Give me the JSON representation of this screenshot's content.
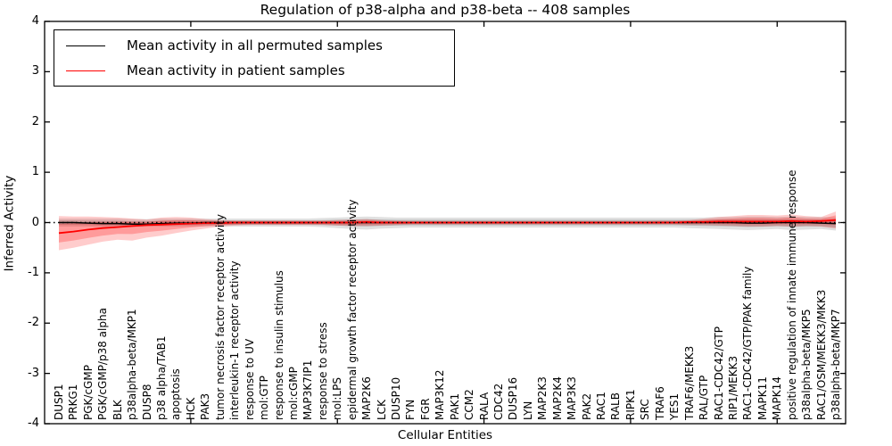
{
  "figure": {
    "title": "Regulation of p38-alpha and p38-beta -- 408 samples",
    "background": "#ffffff",
    "axis_color": "#000000"
  },
  "legend": {
    "position": "upper left",
    "entries": [
      {
        "label": "Mean activity in all permuted samples",
        "color": "#000000"
      },
      {
        "label": "Mean activity in patient samples",
        "color": "#ff0000"
      }
    ]
  },
  "chart_data": {
    "type": "line",
    "title": "Regulation of p38-alpha and p38-beta -- 408 samples",
    "xlabel": "Cellular Entities",
    "ylabel": "Inferred Activity",
    "ylim": [
      -4,
      4
    ],
    "yticks": [
      4,
      3,
      2,
      1,
      0,
      -1,
      -2,
      -3,
      -4
    ],
    "xtick_positions": [
      10,
      20,
      30,
      40,
      50
    ],
    "grid": false,
    "zero_line": {
      "y": 0,
      "style": "dotted",
      "color": "#000000"
    },
    "categories": [
      "DUSP1",
      "PRKG1",
      "PGK/cGMP",
      "PGK/cGMP/p38 alpha",
      "BLK",
      "p38alpha-beta/MKP1",
      "DUSP8",
      "p38 alpha/TAB1",
      "apoptosis",
      "HCK",
      "PAK3",
      "tumor necrosis factor receptor activity",
      "interleukin-1 receptor activity",
      "response to UV",
      "mol:GTP",
      "response to insulin stimulus",
      "mol:cGMP",
      "MAP3K7IP1",
      "response to stress",
      "mol:LPS",
      "epidermal growth factor receptor activity",
      "MAP2K6",
      "LCK",
      "DUSP10",
      "FYN",
      "FGR",
      "MAP3K12",
      "PAK1",
      "CCM2",
      "RALA",
      "CDC42",
      "DUSP16",
      "LYN",
      "MAP2K3",
      "MAP2K4",
      "MAP3K3",
      "PAK2",
      "RAC1",
      "RALB",
      "RIPK1",
      "SRC",
      "TRAF6",
      "YES1",
      "TRAF6/MEKK3",
      "RAL/GTP",
      "RAC1-CDC42/GTP",
      "RIP1/MEKK3",
      "RAC1-CDC42/GTP/PAK family",
      "MAPK11",
      "MAPK14",
      "positive regulation of innate immune response",
      "p38alpha-beta/MKP5",
      "RAC1/OSM/MEKK3/MKK3",
      "p38alpha-beta/MKP7"
    ],
    "series": [
      {
        "name": "Mean activity in all permuted samples",
        "color": "#000000",
        "band_color": "0,0,0",
        "band_alpha": 0.12,
        "values": [
          0,
          0,
          -0.01,
          -0.02,
          -0.02,
          -0.03,
          -0.03,
          -0.02,
          -0.01,
          -0.01,
          0,
          0,
          0,
          0,
          0,
          0,
          0,
          0,
          0,
          0,
          0,
          0,
          0,
          0,
          0,
          0,
          0,
          0,
          0,
          0,
          0,
          0,
          0,
          0,
          0,
          0,
          0,
          0,
          0,
          0,
          0,
          0,
          0,
          0,
          0,
          0,
          0,
          -0.01,
          -0.01,
          0,
          0,
          0,
          -0.01,
          -0.02
        ],
        "band_upper": [
          0.08,
          0.08,
          0.08,
          0.08,
          0.08,
          0.07,
          0.07,
          0.08,
          0.08,
          0.08,
          0.08,
          0.08,
          0.08,
          0.08,
          0.08,
          0.08,
          0.08,
          0.08,
          0.09,
          0.1,
          0.11,
          0.12,
          0.11,
          0.1,
          0.1,
          0.1,
          0.1,
          0.1,
          0.1,
          0.1,
          0.1,
          0.1,
          0.1,
          0.1,
          0.1,
          0.1,
          0.1,
          0.1,
          0.1,
          0.1,
          0.1,
          0.1,
          0.1,
          0.1,
          0.1,
          0.11,
          0.11,
          0.12,
          0.12,
          0.11,
          0.12,
          0.11,
          0.11,
          0.1
        ],
        "band_lower": [
          -0.08,
          -0.08,
          -0.08,
          -0.09,
          -0.09,
          -0.09,
          -0.08,
          -0.08,
          -0.08,
          -0.08,
          -0.08,
          -0.08,
          -0.08,
          -0.08,
          -0.08,
          -0.08,
          -0.08,
          -0.08,
          -0.09,
          -0.11,
          -0.13,
          -0.14,
          -0.12,
          -0.11,
          -0.1,
          -0.1,
          -0.1,
          -0.1,
          -0.1,
          -0.1,
          -0.1,
          -0.1,
          -0.1,
          -0.1,
          -0.1,
          -0.1,
          -0.1,
          -0.1,
          -0.1,
          -0.1,
          -0.1,
          -0.1,
          -0.1,
          -0.11,
          -0.12,
          -0.13,
          -0.14,
          -0.15,
          -0.14,
          -0.13,
          -0.15,
          -0.14,
          -0.13,
          -0.16
        ]
      },
      {
        "name": "Mean activity in patient samples",
        "color": "#ff0000",
        "band_color": "255,0,0",
        "band_alpha": 0.2,
        "values": [
          -0.21,
          -0.18,
          -0.14,
          -0.11,
          -0.09,
          -0.07,
          -0.05,
          -0.04,
          -0.03,
          -0.02,
          -0.01,
          -0.01,
          0,
          0,
          0,
          0,
          0,
          0,
          0,
          0,
          0,
          0.01,
          0,
          0,
          0,
          0,
          0,
          0,
          0,
          0,
          0,
          0,
          0,
          0,
          0,
          0,
          0,
          0,
          0,
          0,
          0,
          0,
          0,
          0.01,
          0.01,
          0.02,
          0.02,
          0.02,
          0.02,
          0.02,
          0.03,
          0.02,
          0.03,
          0.05
        ],
        "band_upper": [
          0.13,
          0.12,
          0.12,
          0.11,
          0.1,
          0.08,
          0.06,
          0.1,
          0.11,
          0.1,
          0.07,
          0.05,
          0.04,
          0.04,
          0.04,
          0.04,
          0.04,
          0.04,
          0.04,
          0.05,
          0.06,
          0.07,
          0.05,
          0.04,
          0.03,
          0.03,
          0.03,
          0.03,
          0.03,
          0.03,
          0.03,
          0.03,
          0.03,
          0.03,
          0.03,
          0.03,
          0.03,
          0.03,
          0.03,
          0.03,
          0.03,
          0.04,
          0.04,
          0.05,
          0.08,
          0.11,
          0.13,
          0.15,
          0.15,
          0.14,
          0.16,
          0.13,
          0.11,
          0.22
        ],
        "band_lower": [
          -0.55,
          -0.5,
          -0.44,
          -0.38,
          -0.34,
          -0.36,
          -0.3,
          -0.26,
          -0.21,
          -0.16,
          -0.12,
          -0.08,
          -0.06,
          -0.05,
          -0.05,
          -0.05,
          -0.05,
          -0.05,
          -0.05,
          -0.06,
          -0.07,
          -0.07,
          -0.06,
          -0.05,
          -0.04,
          -0.04,
          -0.04,
          -0.04,
          -0.04,
          -0.04,
          -0.04,
          -0.04,
          -0.04,
          -0.04,
          -0.04,
          -0.04,
          -0.04,
          -0.04,
          -0.04,
          -0.04,
          -0.04,
          -0.04,
          -0.04,
          -0.05,
          -0.05,
          -0.06,
          -0.07,
          -0.08,
          -0.08,
          -0.07,
          -0.08,
          -0.07,
          -0.08,
          -0.12
        ]
      }
    ]
  }
}
